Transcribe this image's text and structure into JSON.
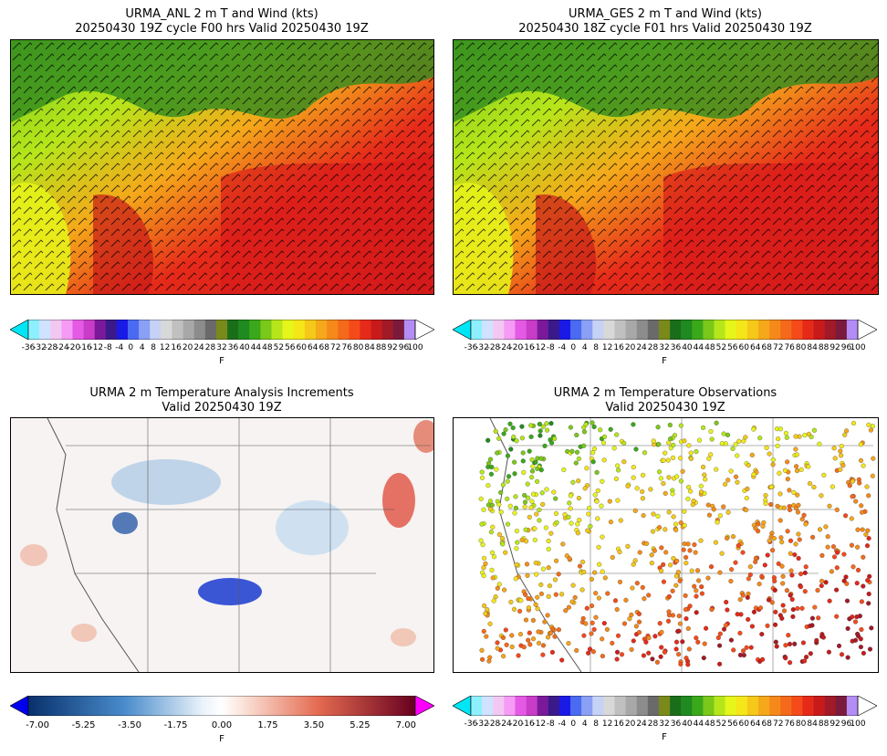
{
  "panels": [
    {
      "title1": "URMA_ANL 2 m T and Wind (kts)",
      "title2": "20250430 19Z cycle F00 hrs Valid 20250430 19Z"
    },
    {
      "title1": "URMA_GES 2 m T and Wind (kts)",
      "title2": "20250430 18Z cycle F01 hrs Valid 20250430 19Z"
    },
    {
      "title1": "URMA 2 m Temperature Analysis Increments",
      "title2": "Valid 20250430 19Z"
    },
    {
      "title1": "URMA 2 m Temperature Observations",
      "title2": "Valid 20250430 19Z"
    }
  ],
  "temp_colorbar": {
    "ticks": [
      "-36",
      "-32",
      "-28",
      "-24",
      "-20",
      "-16",
      "-12",
      "-8",
      "-4",
      "0",
      "4",
      "8",
      "12",
      "16",
      "20",
      "24",
      "28",
      "32",
      "36",
      "40",
      "44",
      "48",
      "52",
      "56",
      "60",
      "64",
      "68",
      "72",
      "76",
      "80",
      "84",
      "88",
      "92",
      "96",
      "100"
    ],
    "unit": "F",
    "colors": [
      "#8ef0ff",
      "#cfe2ff",
      "#f2c8f2",
      "#f59bf5",
      "#e45ae4",
      "#c83cc8",
      "#7a1a9a",
      "#3a1a8a",
      "#1a1ae6",
      "#4a6af2",
      "#8aa0f5",
      "#c6d2f5",
      "#d8d8d8",
      "#c0c0c0",
      "#a8a8a8",
      "#8c8c8c",
      "#6a6a6a",
      "#7a8a1a",
      "#1a6e1a",
      "#1f8a1f",
      "#3aa81a",
      "#7ac81a",
      "#b6e61a",
      "#e6f51a",
      "#f5e61a",
      "#f5c81a",
      "#f5a81a",
      "#f58a1a",
      "#f56a1a",
      "#f54a1a",
      "#e62a1a",
      "#c81a1a",
      "#a01a28",
      "#7a1a3c",
      "#b48cf5"
    ],
    "under": "#00e6f5",
    "over": "#ffffff"
  },
  "incr_colorbar": {
    "ticks": [
      "-7.00",
      "-5.25",
      "-3.50",
      "-1.75",
      "0.00",
      "1.75",
      "3.50",
      "5.25",
      "7.00"
    ],
    "unit": "F",
    "under": "#0000f0",
    "over": "#ff00ff"
  }
}
